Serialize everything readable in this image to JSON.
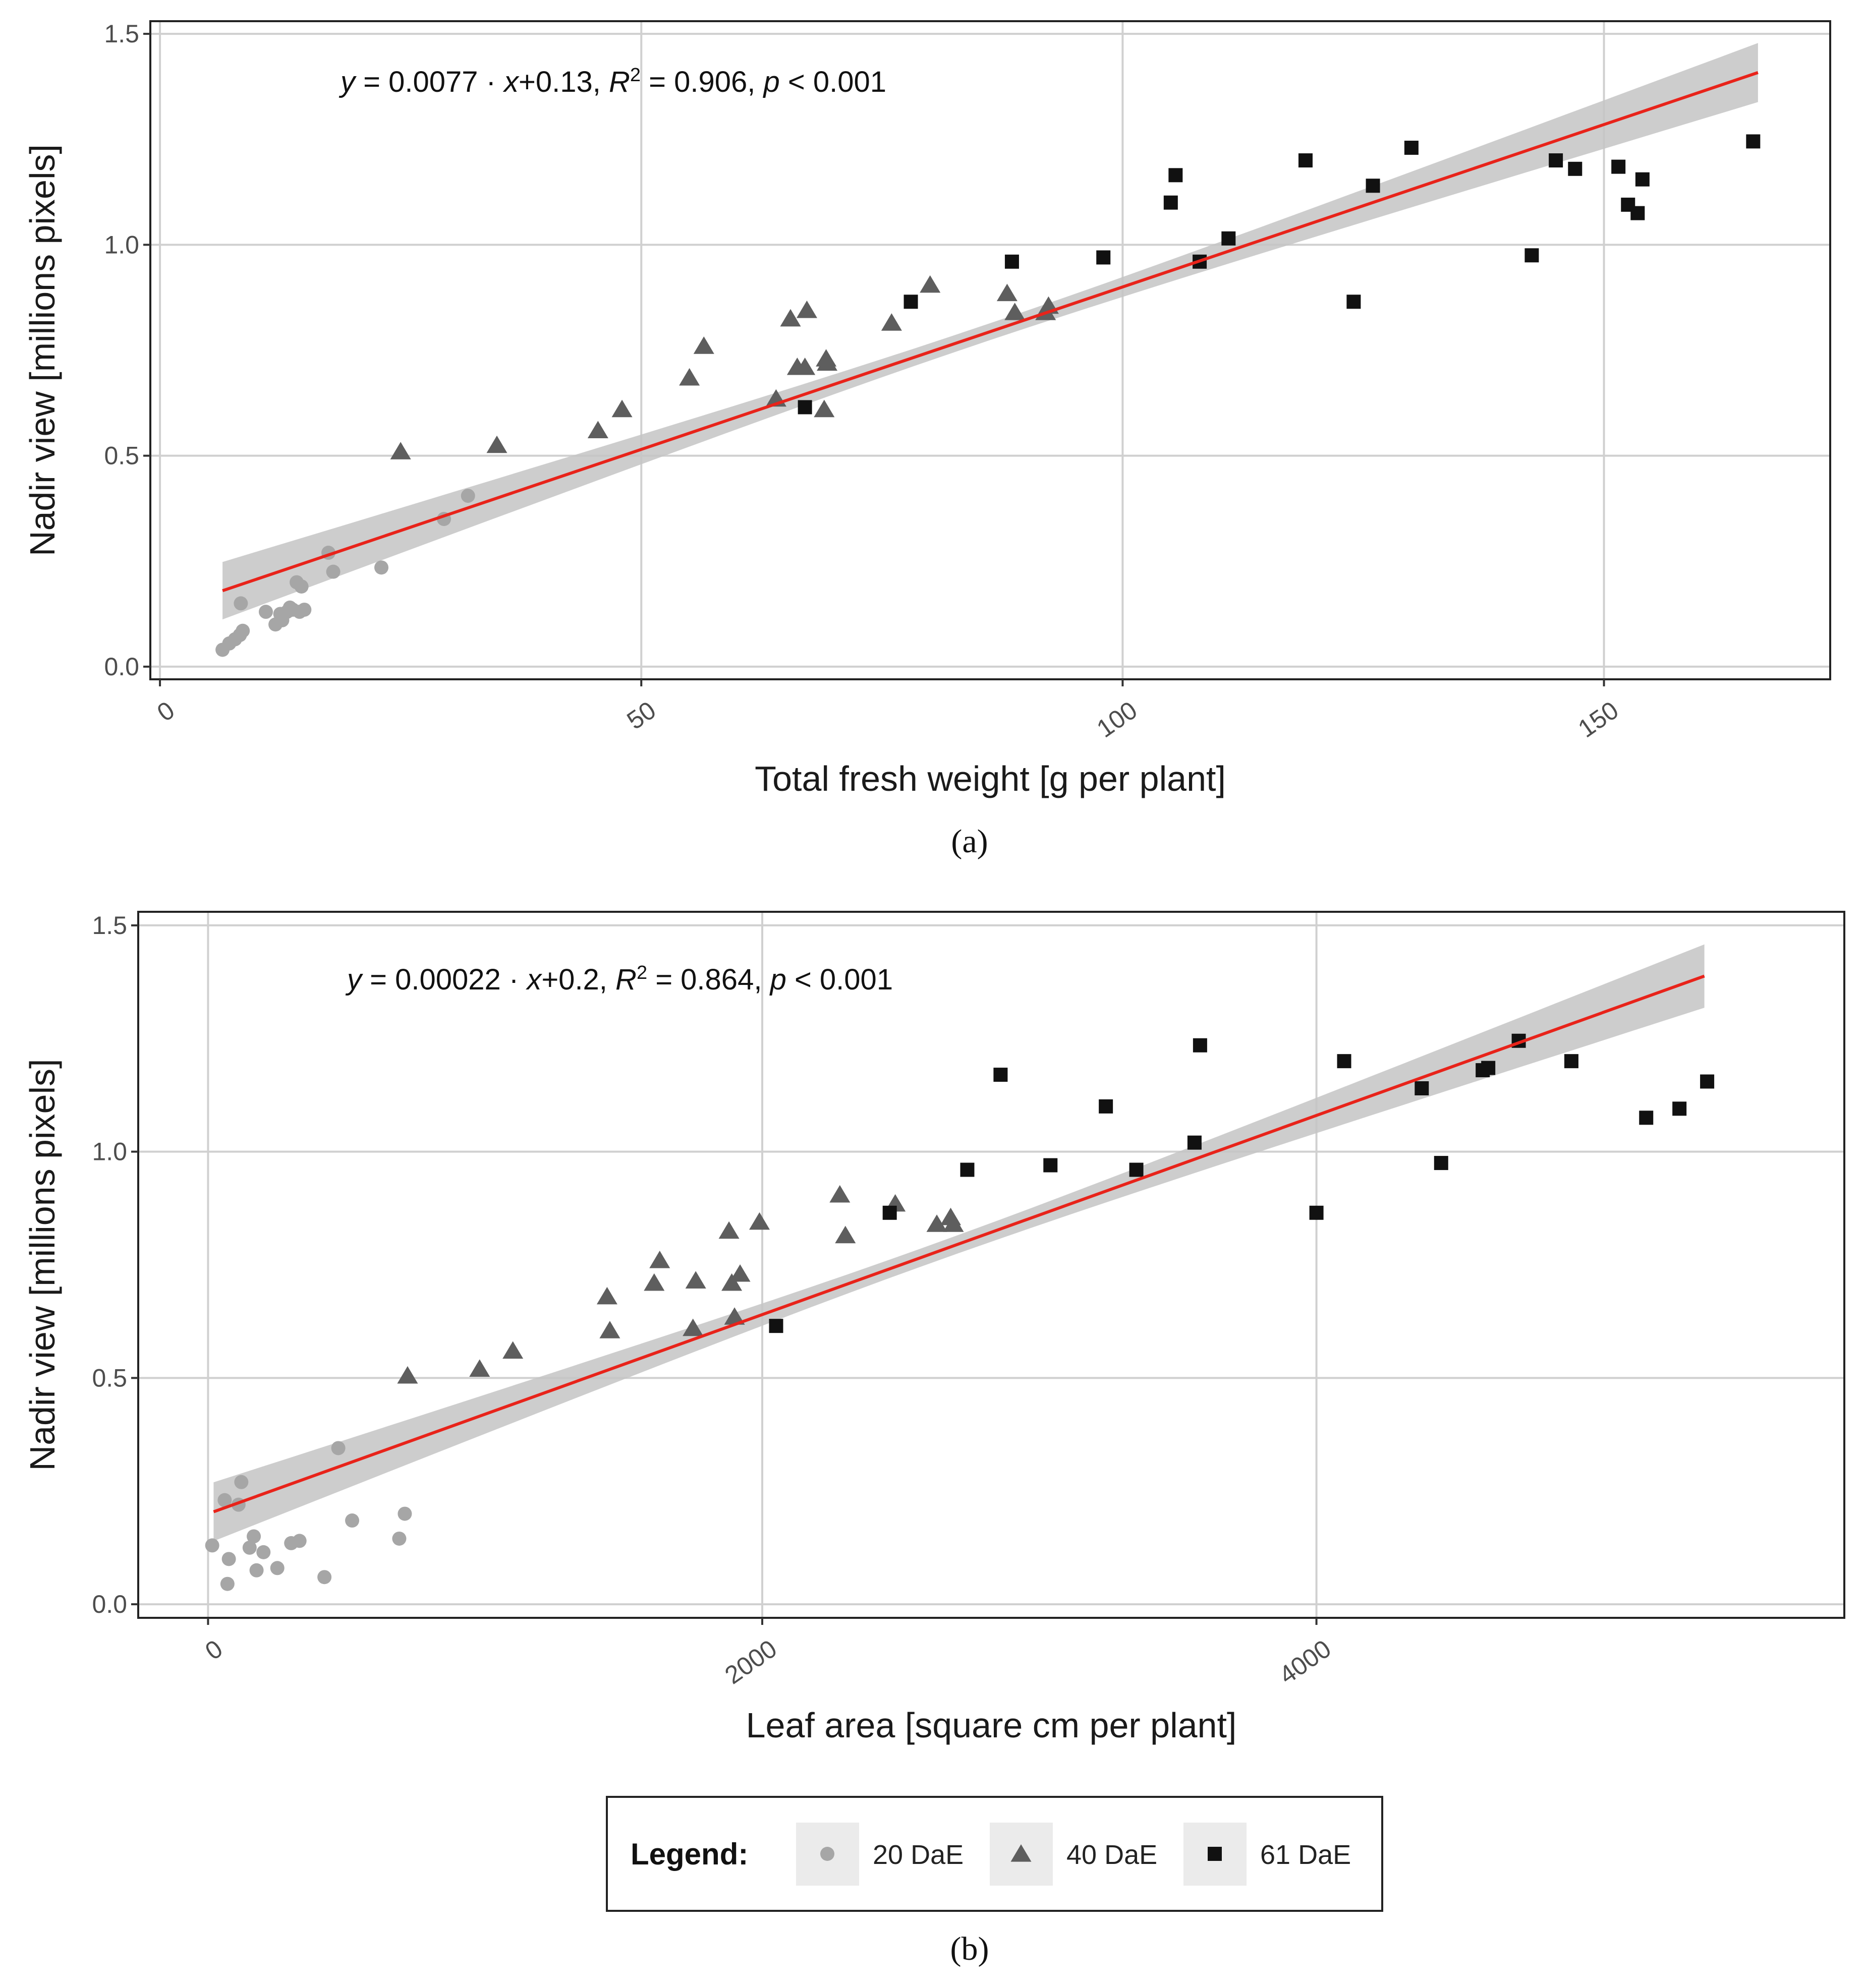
{
  "chart_data": [
    {
      "type": "scatter",
      "panel_label": "(a)",
      "equation": {
        "y": "y",
        "eq1": " = 0.0077 · ",
        "x": "x",
        "eq2": "+0.13,  ",
        "r": "R",
        "exp": "2",
        "eq3": " = 0.906,  ",
        "p": "p",
        "eq4": " < 0.001"
      },
      "xlabel": "Total fresh weight [g per plant]",
      "ylabel": "Nadir view [millions pixels]",
      "xlim": [
        -1,
        173.5
      ],
      "ylim": [
        -0.03,
        1.53
      ],
      "x_ticks": [
        0,
        50,
        100,
        150
      ],
      "x_tick_labels": [
        "0",
        "50",
        "100",
        "150"
      ],
      "y_ticks": [
        0.0,
        0.5,
        1.0,
        1.5
      ],
      "y_tick_labels": [
        "0.0",
        "0.5",
        "1.0",
        "1.5"
      ],
      "grid": true,
      "fit": {
        "slope": 0.0077,
        "intercept": 0.13,
        "x_range": [
          6.5,
          166
        ],
        "band_halfwidth_ends": 0.07,
        "band_halfwidth_mid": 0.02,
        "x_center": 85
      },
      "series": [
        {
          "name": "20 DaE",
          "x": [
            6.5,
            7.2,
            7.8,
            8.3,
            8.6,
            8.4,
            11,
            12,
            12.7,
            13.2,
            13.8,
            14.5,
            15,
            14.7,
            13.5,
            12.5,
            14.2,
            18,
            17.5,
            23,
            29.5,
            32
          ],
          "y": [
            0.04,
            0.055,
            0.065,
            0.075,
            0.085,
            0.15,
            0.13,
            0.1,
            0.11,
            0.13,
            0.135,
            0.13,
            0.135,
            0.19,
            0.14,
            0.125,
            0.2,
            0.225,
            0.27,
            0.235,
            0.35,
            0.405
          ]
        },
        {
          "name": "40 DaE",
          "x": [
            25,
            35,
            45.5,
            48,
            55,
            56.5,
            64,
            65.5,
            66.2,
            67,
            67.2,
            69,
            69.3,
            69.2,
            76,
            80,
            88,
            88.8,
            92,
            92.3
          ],
          "y": [
            0.51,
            0.525,
            0.56,
            0.61,
            0.685,
            0.76,
            0.635,
            0.825,
            0.71,
            0.71,
            0.845,
            0.61,
            0.72,
            0.73,
            0.815,
            0.905,
            0.885,
            0.84,
            0.84,
            0.855
          ]
        },
        {
          "name": "61 DaE",
          "x": [
            67,
            78,
            88.5,
            98,
            105,
            105.5,
            108,
            111,
            119,
            124,
            126,
            130,
            142.5,
            145,
            147,
            151.5,
            152.5,
            153.5,
            154,
            165.5
          ],
          "y": [
            0.615,
            0.865,
            0.96,
            0.97,
            1.1,
            1.165,
            0.96,
            1.015,
            1.2,
            0.865,
            1.14,
            1.23,
            0.975,
            1.2,
            1.18,
            1.185,
            1.095,
            1.075,
            1.155,
            1.245
          ]
        }
      ]
    },
    {
      "type": "scatter",
      "panel_label": "(b)",
      "equation": {
        "y": "y",
        "eq1": " = 0.00022 · ",
        "x": "x",
        "eq2": "+0.2,  ",
        "r": "R",
        "exp": "2",
        "eq3": " = 0.864,  ",
        "p": "p",
        "eq4": " < 0.001"
      },
      "xlabel": "Leaf area [square cm per plant]",
      "ylabel": "Nadir view [millions pixels]",
      "xlim": [
        -252,
        5905
      ],
      "ylim": [
        -0.03,
        1.53
      ],
      "x_ticks": [
        0,
        2000,
        4000
      ],
      "x_tick_labels": [
        "0",
        "2000",
        "4000"
      ],
      "y_ticks": [
        0.0,
        0.5,
        1.0,
        1.5
      ],
      "y_tick_labels": [
        "0.0",
        "0.5",
        "1.0",
        "1.5"
      ],
      "grid": true,
      "fit": {
        "slope": 0.00022,
        "intercept": 0.2,
        "x_range": [
          20,
          5400
        ],
        "band_halfwidth_ends": 0.07,
        "band_halfwidth_mid": 0.02,
        "x_center": 2600
      },
      "series": [
        {
          "name": "20 DaE",
          "x": [
            15,
            60,
            75,
            70,
            120,
            110,
            150,
            165,
            175,
            200,
            250,
            300,
            330,
            420,
            470,
            520,
            690,
            710
          ],
          "y": [
            0.13,
            0.23,
            0.1,
            0.045,
            0.27,
            0.22,
            0.125,
            0.15,
            0.075,
            0.115,
            0.08,
            0.135,
            0.14,
            0.06,
            0.345,
            0.185,
            0.145,
            0.2
          ]
        },
        {
          "name": "40 DaE",
          "x": [
            720,
            980,
            1100,
            1440,
            1450,
            1610,
            1630,
            1760,
            1750,
            1880,
            1890,
            1920,
            1900,
            1990,
            2280,
            2300,
            2480,
            2630,
            2680,
            2690
          ],
          "y": [
            0.505,
            0.52,
            0.56,
            0.68,
            0.605,
            0.71,
            0.76,
            0.715,
            0.61,
            0.825,
            0.71,
            0.73,
            0.635,
            0.845,
            0.905,
            0.815,
            0.885,
            0.84,
            0.855,
            0.84
          ]
        },
        {
          "name": "61 DaE",
          "x": [
            2050,
            2460,
            2740,
            2860,
            3040,
            3240,
            3350,
            3560,
            3580,
            4000,
            4100,
            4380,
            4450,
            4600,
            4620,
            4730,
            4920,
            5190,
            5310,
            5410
          ],
          "y": [
            0.615,
            0.865,
            0.96,
            1.17,
            0.97,
            1.1,
            0.96,
            1.02,
            1.235,
            0.865,
            1.2,
            1.14,
            0.975,
            1.18,
            1.185,
            1.245,
            1.2,
            1.075,
            1.095,
            1.155
          ]
        }
      ]
    }
  ],
  "legend": {
    "title": "Legend:",
    "items": [
      {
        "label": "20 DaE",
        "shape": "circle",
        "color": "#a6a6a6"
      },
      {
        "label": "40 DaE",
        "shape": "triangle",
        "color": "#5e5e5e"
      },
      {
        "label": "61 DaE",
        "shape": "square",
        "color": "#111111"
      }
    ]
  },
  "colors": {
    "fit_line": "#e8231a",
    "band": "#c4c4c4",
    "grid": "#d0d0d0",
    "key_bg": "#ebebeb"
  }
}
